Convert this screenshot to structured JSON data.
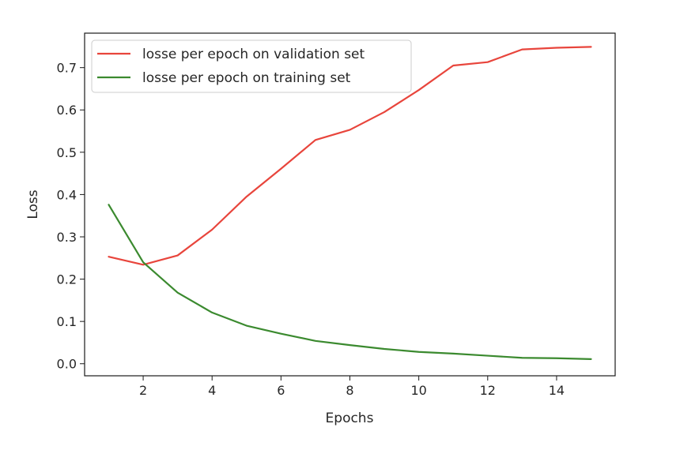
{
  "chart_data": {
    "type": "line",
    "title": "",
    "xlabel": "Epochs",
    "ylabel": "Loss",
    "xlim": [
      0.3,
      15.7
    ],
    "ylim": [
      -0.0285,
      0.7815
    ],
    "x_ticks": [
      2,
      4,
      6,
      8,
      10,
      12,
      14
    ],
    "y_ticks": [
      0.0,
      0.1,
      0.2,
      0.3,
      0.4,
      0.5,
      0.6,
      0.7
    ],
    "x_tick_labels": [
      "2",
      "4",
      "6",
      "8",
      "10",
      "12",
      "14"
    ],
    "y_tick_labels": [
      "0.0",
      "0.1",
      "0.2",
      "0.3",
      "0.4",
      "0.5",
      "0.6",
      "0.7"
    ],
    "grid": false,
    "legend_position": "top-left",
    "x": [
      1,
      2,
      3,
      4,
      5,
      6,
      7,
      8,
      9,
      10,
      11,
      12,
      13,
      14,
      15
    ],
    "series": [
      {
        "name": "losse per epoch on validation set",
        "color": "#e8453c",
        "values": [
          0.253,
          0.234,
          0.256,
          0.317,
          0.395,
          0.461,
          0.529,
          0.553,
          0.595,
          0.647,
          0.705,
          0.713,
          0.743,
          0.747,
          0.749
        ]
      },
      {
        "name": "losse per epoch on training set",
        "color": "#3b8a2f",
        "values": [
          0.376,
          0.24,
          0.168,
          0.121,
          0.09,
          0.071,
          0.054,
          0.044,
          0.035,
          0.028,
          0.024,
          0.019,
          0.014,
          0.013,
          0.011
        ]
      }
    ]
  }
}
